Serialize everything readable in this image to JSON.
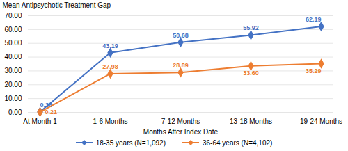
{
  "chart_data": {
    "type": "line",
    "xlabel": "Months After Index Date",
    "ylabel": "Mean Antipsychotic Treatment Gap",
    "categories": [
      "At Month 1",
      "1-6 Months",
      "7-12 Months",
      "13-18 Months",
      "19-24 Months"
    ],
    "series": [
      {
        "name": "18-35 years (N=1,092)",
        "color": "#4472c4",
        "marker": "diamond",
        "line_style": "solid",
        "values": [
          0.36,
          43.19,
          50.68,
          55.92,
          62.19
        ],
        "value_labels": [
          "0.36",
          "43.19",
          "50.68",
          "55.92",
          "62.19"
        ]
      },
      {
        "name": "36-64 years (N=4,102)",
        "color": "#ed7d31",
        "marker": "diamond",
        "line_style": "solid",
        "values": [
          0.21,
          27.98,
          28.89,
          33.6,
          35.29
        ],
        "value_labels": [
          "0.21",
          "27.98",
          "28.89",
          "33.60",
          "35.29"
        ]
      }
    ],
    "ylim": [
      0,
      70
    ],
    "yticks": [
      {
        "value": 0,
        "label": "0.00"
      },
      {
        "value": 10,
        "label": "10.00"
      },
      {
        "value": 20,
        "label": "20.00"
      },
      {
        "value": 30,
        "label": "30.00"
      },
      {
        "value": 40,
        "label": "40.00"
      },
      {
        "value": 50,
        "label": "50.00"
      },
      {
        "value": 60,
        "label": "60.00"
      },
      {
        "value": 70,
        "label": "70.00"
      }
    ],
    "grid": true,
    "legend": "bottom",
    "data_labels": true
  }
}
